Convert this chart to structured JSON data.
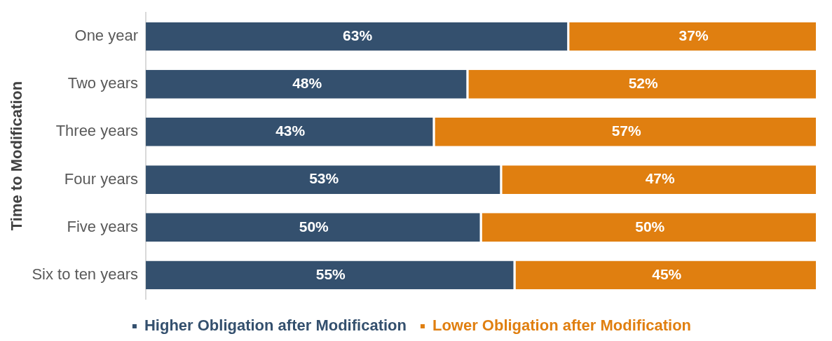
{
  "chart_data": {
    "type": "bar",
    "orientation": "horizontal",
    "stacked": true,
    "ylabel": "Time to Modification",
    "categories": [
      "One year",
      "Two years",
      "Three years",
      "Four years",
      "Five years",
      "Six to ten years"
    ],
    "xlim": [
      0,
      100
    ],
    "grid": false,
    "legend": "bottom",
    "tick_labels": "y",
    "series": [
      {
        "name": "Higher Obligation after Modification",
        "color": "#34506e",
        "values": [
          63,
          48,
          43,
          53,
          50,
          55
        ],
        "value_labels": [
          "63%",
          "48%",
          "43%",
          "53%",
          "50%",
          "55%"
        ]
      },
      {
        "name": "Lower Obligation after Modification",
        "color": "#e07f10",
        "values": [
          37,
          52,
          57,
          47,
          50,
          45
        ],
        "value_labels": [
          "37%",
          "52%",
          "57%",
          "47%",
          "50%",
          "45%"
        ]
      }
    ]
  }
}
